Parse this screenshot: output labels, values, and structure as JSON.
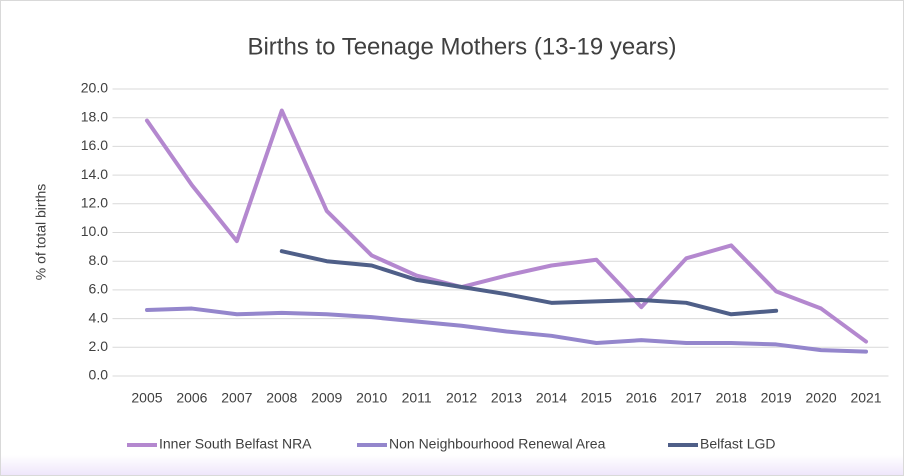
{
  "chart_data": {
    "type": "line",
    "title": "Births to Teenage Mothers (13-19 years)",
    "y_label": "% of total births",
    "categories": [
      "2005",
      "2006",
      "2007",
      "2008",
      "2009",
      "2010",
      "2011",
      "2012",
      "2013",
      "2014",
      "2015",
      "2016",
      "2017",
      "2018",
      "2019",
      "2020",
      "2021"
    ],
    "series": [
      {
        "name": "Inner South Belfast NRA",
        "color": "#b488cf",
        "values": [
          17.8,
          13.3,
          9.4,
          18.5,
          11.5,
          8.4,
          7.0,
          6.2,
          7.0,
          7.7,
          8.1,
          4.8,
          8.2,
          9.1,
          5.9,
          4.7,
          2.4
        ]
      },
      {
        "name": "Non Neighbourhood Renewal Area",
        "color": "#9486cc",
        "values": [
          4.6,
          4.7,
          4.3,
          4.4,
          4.3,
          4.1,
          3.8,
          3.5,
          3.1,
          2.8,
          2.3,
          2.5,
          2.3,
          2.3,
          2.2,
          1.8,
          1.7
        ]
      },
      {
        "name": "Belfast LGD",
        "color": "#4f5f88",
        "values": [
          null,
          null,
          null,
          8.7,
          8.0,
          7.7,
          6.7,
          6.2,
          5.7,
          5.1,
          5.2,
          5.3,
          5.1,
          4.3,
          4.55,
          null,
          null
        ]
      }
    ],
    "ylim": [
      0,
      20
    ],
    "yticks": [
      {
        "value": 0,
        "label": "0.0"
      },
      {
        "value": 2,
        "label": "2.0"
      },
      {
        "value": 4,
        "label": "4.0"
      },
      {
        "value": 6,
        "label": "6.0"
      },
      {
        "value": 8,
        "label": "8.0"
      },
      {
        "value": 10,
        "label": "10.0"
      },
      {
        "value": 12,
        "label": "12.0"
      },
      {
        "value": 14,
        "label": "14.0"
      },
      {
        "value": 16,
        "label": "16.0"
      },
      {
        "value": 18,
        "label": "18.0"
      },
      {
        "value": 20,
        "label": "20.0"
      }
    ],
    "grid": true,
    "legend": "bottom"
  }
}
